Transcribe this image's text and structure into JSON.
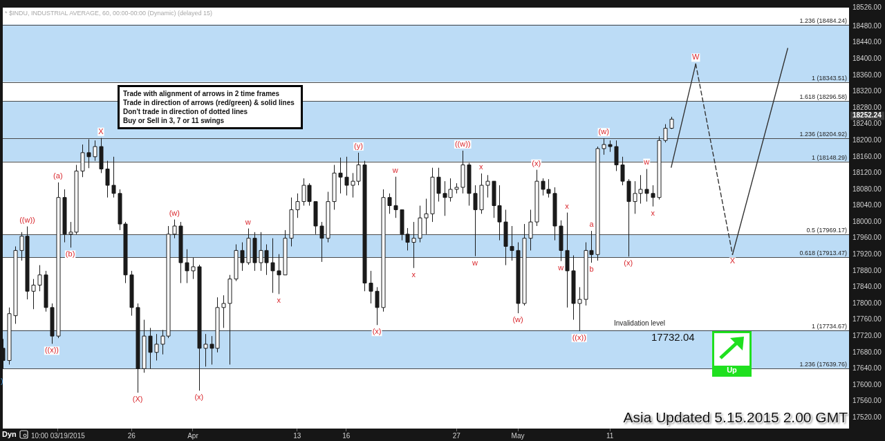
{
  "chart_data": {
    "type": "candlestick",
    "title": "* $INDU, INDUSTRIAL AVERAGE, 60, 00:00-00:00 (Dynamic) (delayed 15)",
    "categories": [
      null,
      null,
      null,
      null,
      null,
      null,
      null,
      null,
      null,
      "10:00 03/19/2015",
      null,
      null,
      null,
      null,
      null,
      null,
      null,
      null,
      null,
      null,
      null,
      "26",
      null,
      null,
      null,
      null,
      null,
      null,
      null,
      null,
      null,
      "Apr",
      null,
      null,
      null,
      null,
      null,
      null,
      null,
      null,
      null,
      null,
      null,
      null,
      null,
      null,
      null,
      null,
      "13",
      null,
      null,
      null,
      null,
      null,
      null,
      null,
      "16",
      null,
      null,
      null,
      null,
      null,
      null,
      null,
      null,
      null,
      null,
      null,
      null,
      null,
      null,
      null,
      null,
      null,
      "27",
      null,
      null,
      null,
      null,
      null,
      null,
      null,
      null,
      null,
      "May",
      null,
      null,
      null,
      null,
      null,
      null,
      null,
      null,
      null,
      null,
      null,
      null,
      null,
      null,
      "11",
      null,
      null,
      null,
      null,
      null,
      null,
      null,
      null,
      null,
      null,
      null,
      null,
      null,
      null,
      null,
      null,
      null,
      null,
      null,
      null,
      null,
      null,
      null,
      null,
      null,
      null,
      null,
      null,
      null,
      null,
      null,
      null,
      null,
      null,
      null,
      null,
      null,
      null,
      null
    ],
    "ohlc": [
      [
        17690,
        17713,
        17640,
        17660
      ],
      [
        17660,
        17790,
        17650,
        17775
      ],
      [
        17770,
        17940,
        17750,
        17930
      ],
      [
        17930,
        17975,
        17905,
        17965
      ],
      [
        17965,
        17989,
        17810,
        17830
      ],
      [
        17830,
        17860,
        17786,
        17845
      ],
      [
        17845,
        17894,
        17830,
        17870
      ],
      [
        17870,
        17880,
        17780,
        17790
      ],
      [
        17790,
        17800,
        17701,
        17720
      ],
      [
        17720,
        18097,
        17715,
        18060
      ],
      [
        18060,
        18080,
        17950,
        17970
      ],
      [
        17970,
        18000,
        17937,
        17975
      ],
      [
        17975,
        18140,
        17970,
        18125
      ],
      [
        18125,
        18190,
        18110,
        18170
      ],
      [
        18170,
        18203,
        18132,
        18160
      ],
      [
        18160,
        18200,
        18150,
        18185
      ],
      [
        18185,
        18206,
        18120,
        18130
      ],
      [
        18130,
        18150,
        18060,
        18090
      ],
      [
        18090,
        18160,
        18060,
        18070
      ],
      [
        18070,
        18080,
        17980,
        17995
      ],
      [
        17995,
        18000,
        17850,
        17870
      ],
      [
        17870,
        17880,
        17770,
        17790
      ],
      [
        17790,
        17800,
        17581,
        17640
      ],
      [
        17640,
        17760,
        17630,
        17720
      ],
      [
        17720,
        17740,
        17640,
        17680
      ],
      [
        17680,
        17725,
        17660,
        17700
      ],
      [
        17700,
        17735,
        17675,
        17720
      ],
      [
        17720,
        17990,
        17715,
        17970
      ],
      [
        17970,
        18006,
        17960,
        17990
      ],
      [
        17990,
        18000,
        17850,
        17900
      ],
      [
        17900,
        17933,
        17850,
        17880
      ],
      [
        17880,
        17912,
        17860,
        17890
      ],
      [
        17890,
        17895,
        17586,
        17690
      ],
      [
        17690,
        17725,
        17645,
        17700
      ],
      [
        17700,
        17720,
        17650,
        17690
      ],
      [
        17690,
        17815,
        17680,
        17790
      ],
      [
        17790,
        17820,
        17740,
        17800
      ],
      [
        17800,
        17870,
        17650,
        17860
      ],
      [
        17860,
        17945,
        17855,
        17930
      ],
      [
        17930,
        17950,
        17880,
        17900
      ],
      [
        17900,
        17984,
        17895,
        17960
      ],
      [
        17960,
        17975,
        17880,
        17900
      ],
      [
        17900,
        17975,
        17880,
        17930
      ],
      [
        17930,
        17945,
        17870,
        17900
      ],
      [
        17900,
        17960,
        17826,
        17880
      ],
      [
        17880,
        17921,
        17823,
        17870
      ],
      [
        17870,
        17980,
        17870,
        17960
      ],
      [
        17960,
        18060,
        17940,
        18030
      ],
      [
        18030,
        18070,
        18010,
        18050
      ],
      [
        18050,
        18107,
        18040,
        18090
      ],
      [
        18090,
        18095,
        18040,
        18050
      ],
      [
        18050,
        18050,
        17970,
        17990
      ],
      [
        17990,
        18000,
        17902,
        17960
      ],
      [
        17960,
        18074,
        17950,
        18050
      ],
      [
        18050,
        18140,
        18030,
        18120
      ],
      [
        18120,
        18158,
        18070,
        18110
      ],
      [
        18110,
        18160,
        18065,
        18090
      ],
      [
        18090,
        18120,
        18060,
        18100
      ],
      [
        18100,
        18170,
        18090,
        18140
      ],
      [
        18140,
        18150,
        17830,
        17850
      ],
      [
        17850,
        17880,
        17800,
        17830
      ],
      [
        17830,
        17840,
        17747,
        17790
      ],
      [
        17790,
        18080,
        17780,
        18060
      ],
      [
        18060,
        18070,
        18020,
        18040
      ],
      [
        18040,
        18111,
        18010,
        18030
      ],
      [
        18030,
        18030,
        17955,
        17970
      ],
      [
        17970,
        17985,
        17930,
        17950
      ],
      [
        17950,
        18000,
        17887,
        17960
      ],
      [
        17960,
        18040,
        17950,
        18010
      ],
      [
        18010,
        18057,
        17970,
        18020
      ],
      [
        18020,
        18133,
        18000,
        18110
      ],
      [
        18110,
        18133,
        18050,
        18070
      ],
      [
        18070,
        18100,
        18015,
        18060
      ],
      [
        18060,
        18107,
        18050,
        18080
      ],
      [
        18080,
        18095,
        18070,
        18085
      ],
      [
        18085,
        18175,
        18070,
        18140
      ],
      [
        18140,
        18145,
        18040,
        18070
      ],
      [
        18070,
        18090,
        17916,
        18030
      ],
      [
        18030,
        18119,
        18020,
        18090
      ],
      [
        18090,
        18115,
        18060,
        18100
      ],
      [
        18100,
        18100,
        18010,
        18040
      ],
      [
        18040,
        18090,
        17955,
        18000
      ],
      [
        18000,
        18030,
        17894,
        17940
      ],
      [
        17940,
        17990,
        17905,
        17930
      ],
      [
        17930,
        17950,
        17776,
        17800
      ],
      [
        17800,
        17995,
        17795,
        17960
      ],
      [
        17960,
        18030,
        17930,
        18000
      ],
      [
        18000,
        18128,
        17990,
        18100
      ],
      [
        18100,
        18107,
        18065,
        18080
      ],
      [
        18080,
        18105,
        18060,
        18070
      ],
      [
        18070,
        18085,
        17955,
        17990
      ],
      [
        17990,
        18004,
        17904,
        17930
      ],
      [
        17930,
        18023,
        17790,
        17880
      ],
      [
        17880,
        17918,
        17760,
        17800
      ],
      [
        17800,
        17840,
        17732.04,
        17810
      ],
      [
        17810,
        17950,
        17795,
        17930
      ],
      [
        17930,
        17978,
        17900,
        17920
      ],
      [
        17920,
        18185,
        17905,
        18180
      ],
      [
        18180,
        18205,
        18165,
        18190
      ],
      [
        18190,
        18200,
        18172,
        18185
      ],
      [
        18185,
        18200,
        18125,
        18140
      ],
      [
        18140,
        18160,
        18090,
        18100
      ],
      [
        18100,
        18105,
        17915,
        18050
      ],
      [
        18050,
        18100,
        18020,
        18070
      ],
      [
        18070,
        18115,
        18045,
        18080
      ],
      [
        18080,
        18130,
        18050,
        18070
      ],
      [
        18070,
        18090,
        18038,
        18060
      ],
      [
        18060,
        18210,
        18055,
        18200
      ],
      [
        18200,
        18240,
        18195,
        18230
      ],
      [
        18230,
        18258,
        18228,
        18252.24
      ],
      null,
      null,
      null,
      null,
      null,
      null,
      null,
      null,
      null,
      null,
      null,
      null,
      null,
      null,
      null,
      null,
      null,
      null,
      null,
      null,
      null,
      null,
      null,
      null,
      null,
      null,
      null,
      null,
      null
    ],
    "color": "#1a1a1a",
    "series": [
      {
        "type": "line",
        "color": "#333333",
        "values": [
          null,
          null,
          null,
          null,
          null,
          null,
          null,
          null,
          null,
          null,
          null,
          null,
          null,
          null,
          null,
          null,
          null,
          null,
          null,
          null,
          null,
          null,
          null,
          null,
          null,
          null,
          null,
          null,
          null,
          null,
          null,
          null,
          null,
          null,
          null,
          null,
          null,
          null,
          null,
          null,
          null,
          null,
          null,
          null,
          null,
          null,
          null,
          null,
          null,
          null,
          null,
          null,
          null,
          null,
          null,
          null,
          null,
          null,
          null,
          null,
          null,
          null,
          null,
          null,
          null,
          null,
          null,
          null,
          null,
          null,
          null,
          null,
          null,
          null,
          null,
          null,
          null,
          null,
          null,
          null,
          null,
          null,
          null,
          null,
          null,
          null,
          null,
          null,
          null,
          null,
          null,
          null,
          null,
          null,
          null,
          null,
          null,
          null,
          null,
          null,
          null,
          null,
          null,
          null,
          null,
          null,
          null,
          null,
          null,
          18134,
          null,
          null,
          null,
          18388,
          null,
          null,
          null,
          null,
          null,
          null,
          null,
          null,
          null,
          null,
          null,
          null,
          null,
          null,
          null,
          null,
          null,
          null,
          null,
          null,
          null,
          null,
          null,
          null,
          null
        ]
      },
      {
        "type": "line",
        "color": "#333333",
        "line_style": "dashed",
        "values": [
          null,
          null,
          null,
          null,
          null,
          null,
          null,
          null,
          null,
          null,
          null,
          null,
          null,
          null,
          null,
          null,
          null,
          null,
          null,
          null,
          null,
          null,
          null,
          null,
          null,
          null,
          null,
          null,
          null,
          null,
          null,
          null,
          null,
          null,
          null,
          null,
          null,
          null,
          null,
          null,
          null,
          null,
          null,
          null,
          null,
          null,
          null,
          null,
          null,
          null,
          null,
          null,
          null,
          null,
          null,
          null,
          null,
          null,
          null,
          null,
          null,
          null,
          null,
          null,
          null,
          null,
          null,
          null,
          null,
          null,
          null,
          null,
          null,
          null,
          null,
          null,
          null,
          null,
          null,
          null,
          null,
          null,
          null,
          null,
          null,
          null,
          null,
          null,
          null,
          null,
          null,
          null,
          null,
          null,
          null,
          null,
          null,
          null,
          null,
          null,
          null,
          null,
          null,
          null,
          null,
          null,
          null,
          null,
          null,
          null,
          null,
          null,
          null,
          18388,
          null,
          null,
          null,
          null,
          null,
          17920,
          null,
          null,
          null,
          null,
          null,
          null,
          null,
          null,
          null,
          null,
          null,
          null,
          null,
          null,
          null,
          null,
          null,
          null,
          null
        ]
      },
      {
        "type": "line",
        "color": "#333333",
        "values": [
          null,
          null,
          null,
          null,
          null,
          null,
          null,
          null,
          null,
          null,
          null,
          null,
          null,
          null,
          null,
          null,
          null,
          null,
          null,
          null,
          null,
          null,
          null,
          null,
          null,
          null,
          null,
          null,
          null,
          null,
          null,
          null,
          null,
          null,
          null,
          null,
          null,
          null,
          null,
          null,
          null,
          null,
          null,
          null,
          null,
          null,
          null,
          null,
          null,
          null,
          null,
          null,
          null,
          null,
          null,
          null,
          null,
          null,
          null,
          null,
          null,
          null,
          null,
          null,
          null,
          null,
          null,
          null,
          null,
          null,
          null,
          null,
          null,
          null,
          null,
          null,
          null,
          null,
          null,
          null,
          null,
          null,
          null,
          null,
          null,
          null,
          null,
          null,
          null,
          null,
          null,
          null,
          null,
          null,
          null,
          null,
          null,
          null,
          null,
          null,
          null,
          null,
          null,
          null,
          null,
          null,
          null,
          null,
          null,
          null,
          null,
          null,
          null,
          null,
          null,
          null,
          null,
          null,
          null,
          17920,
          null,
          null,
          null,
          null,
          null,
          null,
          null,
          null,
          18426,
          null,
          null,
          null,
          null,
          null,
          null,
          null,
          null,
          null,
          null
        ]
      }
    ],
    "ylim": [
      17493,
      18526
    ],
    "yticks": [
      {
        "value": 17520,
        "label": "17520.00"
      },
      {
        "value": 17560,
        "label": "17560.00"
      },
      {
        "value": 17600,
        "label": "17600.00"
      },
      {
        "value": 17640,
        "label": "17640.00"
      },
      {
        "value": 17680,
        "label": "17680.00"
      },
      {
        "value": 17720,
        "label": "17720.00"
      },
      {
        "value": 17760,
        "label": "17760.00"
      },
      {
        "value": 17800,
        "label": "17800.00"
      },
      {
        "value": 17840,
        "label": "17840.00"
      },
      {
        "value": 17880,
        "label": "17880.00"
      },
      {
        "value": 17920,
        "label": "17920.00"
      },
      {
        "value": 17960,
        "label": "17960.00"
      },
      {
        "value": 18000,
        "label": "18000.00"
      },
      {
        "value": 18040,
        "label": "18040.00"
      },
      {
        "value": 18080,
        "label": "18080.00"
      },
      {
        "value": 18120,
        "label": "18120.00"
      },
      {
        "value": 18160,
        "label": "18160.00"
      },
      {
        "value": 18200,
        "label": "18200.00"
      },
      {
        "value": 18240,
        "label": "18240.00"
      },
      {
        "value": 18280,
        "label": "18280.00"
      },
      {
        "value": 18320,
        "label": "18320.00"
      },
      {
        "value": 18360,
        "label": "18360.00"
      },
      {
        "value": 18400,
        "label": "18400.00"
      },
      {
        "value": 18440,
        "label": "18440.00"
      },
      {
        "value": 18480,
        "label": "18480.00"
      },
      {
        "value": 18526,
        "label": "18526.00"
      }
    ],
    "bands": [
      {
        "axis": "y",
        "from": 18343.51,
        "to": 18484.24,
        "color": "#bcdcf6"
      },
      {
        "axis": "y",
        "from": 18148.29,
        "to": 18296.58,
        "color": "#bcdcf6"
      },
      {
        "axis": "y",
        "from": 17913.47,
        "to": 17969.17,
        "color": "#bcdcf6"
      },
      {
        "axis": "y",
        "from": 17639.76,
        "to": 17734.67,
        "color": "#bcdcf6"
      }
    ],
    "ref_lines": [
      {
        "axis": "y",
        "value": 18484.24,
        "label": "1.236 (18484.24)",
        "color": "#4a4a4a"
      },
      {
        "axis": "y",
        "value": 18343.51,
        "label": "1 (18343.51)",
        "color": "#4a4a4a"
      },
      {
        "axis": "y",
        "value": 18296.58,
        "label": "1.618 (18296.58)",
        "color": "#4a4a4a"
      },
      {
        "axis": "y",
        "value": 18204.92,
        "label": "1.236 (18204.92)",
        "color": "#4a4a4a"
      },
      {
        "axis": "y",
        "value": 18148.29,
        "label": "1 (18148.29)",
        "color": "#4a4a4a"
      },
      {
        "axis": "y",
        "value": 17969.17,
        "label": "0.5 (17969.17)",
        "color": "#4a4a4a"
      },
      {
        "axis": "y",
        "value": 17913.47,
        "label": "0.618 (17913.47)",
        "color": "#4a4a4a"
      },
      {
        "axis": "y",
        "value": 17734.67,
        "label": "1 (17734.67)",
        "color": "#4a4a4a"
      },
      {
        "axis": "y",
        "value": 17639.76,
        "label": "1.236 (17639.76)",
        "color": "#4a4a4a"
      }
    ],
    "annotations": [
      {
        "text": "((w))",
        "y": 17989
      },
      {
        "text": "(a)",
        "y": 18097
      },
      {
        "text": "(b)",
        "y": 17937
      },
      {
        "text": "((x))",
        "y": 17701
      },
      {
        "text": "X",
        "y": 18206
      },
      {
        "text": "(X)",
        "y": 17581
      },
      {
        "text": "(w)",
        "y": 18006
      },
      {
        "text": "(x)",
        "y": 17586
      },
      {
        "text": "w",
        "y": 17984
      },
      {
        "text": "x",
        "y": 17823
      },
      {
        "text": "(y)",
        "y": 18170
      },
      {
        "text": "(x)",
        "y": 17747
      },
      {
        "text": "w",
        "y": 18111
      },
      {
        "text": "x",
        "y": 17887
      },
      {
        "text": "((w))",
        "y": 18175
      },
      {
        "text": "x",
        "y": 18119
      },
      {
        "text": "w",
        "y": 17916
      },
      {
        "text": "(w)",
        "y": 17776
      },
      {
        "text": "(x)",
        "y": 18128
      },
      {
        "text": "x",
        "y": 18023
      },
      {
        "text": "w",
        "y": 17904
      },
      {
        "text": "((x))",
        "y": 17732.04
      },
      {
        "text": "a",
        "y": 17978
      },
      {
        "text": "b",
        "y": 17900
      },
      {
        "text": "(w)",
        "y": 18205
      },
      {
        "text": "(x)",
        "y": 17915
      },
      {
        "text": "w",
        "y": 18130
      },
      {
        "text": "x",
        "y": 18038
      },
      {
        "text": "W",
        "y": 18388
      },
      {
        "text": "X",
        "y": 17920
      },
      "Trade with alignment of arrows in 2 time frames",
      "Trade in direction of arrows (red/green) & solid lines",
      "Don't trade in direction of dotted lines",
      "Buy or Sell in 3, 7 or 11 swings",
      "Up",
      "Asia Updated 5.15.2015 2.00 GMT",
      "Dyn",
      "Invalidation level",
      "17732.04",
      ")",
      "18252.24"
    ]
  }
}
